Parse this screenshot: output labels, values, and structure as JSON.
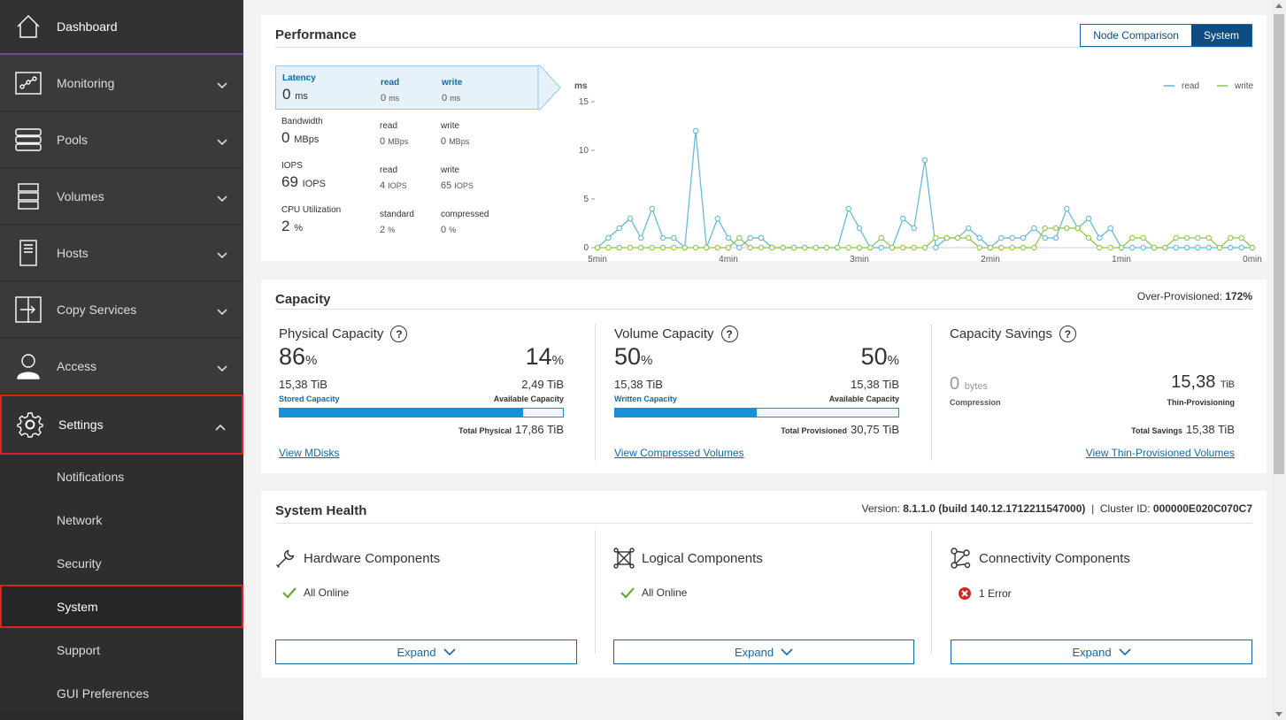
{
  "sidebar": {
    "dashboard": {
      "label": "Dashboard",
      "icon": "home-icon"
    },
    "items": [
      {
        "label": "Monitoring",
        "icon": "monitoring-icon"
      },
      {
        "label": "Pools",
        "icon": "pools-icon"
      },
      {
        "label": "Volumes",
        "icon": "volumes-icon"
      },
      {
        "label": "Hosts",
        "icon": "hosts-icon"
      },
      {
        "label": "Copy Services",
        "icon": "copy-services-icon"
      },
      {
        "label": "Access",
        "icon": "access-icon"
      }
    ],
    "settings": {
      "label": "Settings",
      "icon": "gear-icon",
      "expanded": true
    },
    "sub_items": [
      {
        "label": "Notifications"
      },
      {
        "label": "Network"
      },
      {
        "label": "Security"
      },
      {
        "label": "System",
        "active": true
      },
      {
        "label": "Support"
      },
      {
        "label": "GUI Preferences"
      }
    ]
  },
  "performance": {
    "title": "Performance",
    "toggle": {
      "node": "Node Comparison",
      "system": "System",
      "selected": "System"
    },
    "metrics": [
      {
        "name": "Latency",
        "value": "0",
        "unit": "ms",
        "c1_label": "read",
        "c1_value": "0",
        "c1_unit": "ms",
        "c2_label": "write",
        "c2_value": "0",
        "c2_unit": "ms",
        "selected": true
      },
      {
        "name": "Bandwidth",
        "value": "0",
        "unit": "MBps",
        "c1_label": "read",
        "c1_value": "0",
        "c1_unit": "MBps",
        "c2_label": "write",
        "c2_value": "0",
        "c2_unit": "MBps"
      },
      {
        "name": "IOPS",
        "value": "69",
        "unit": "IOPS",
        "c1_label": "read",
        "c1_value": "4",
        "c1_unit": "IOPS",
        "c2_label": "write",
        "c2_value": "65",
        "c2_unit": "IOPS"
      },
      {
        "name": "CPU Utilization",
        "value": "2",
        "unit": "%",
        "c1_label": "standard",
        "c1_value": "2",
        "c1_unit": "%",
        "c2_label": "compressed",
        "c2_value": "0",
        "c2_unit": "%"
      }
    ]
  },
  "chart_data": {
    "type": "line",
    "ylabel": "ms",
    "ylim": [
      0,
      15
    ],
    "yticks": [
      0,
      5,
      10,
      15
    ],
    "xlim": [
      300,
      0
    ],
    "xticks": [
      {
        "x": 300,
        "label": "5min"
      },
      {
        "x": 240,
        "label": "4min"
      },
      {
        "x": 180,
        "label": "3min"
      },
      {
        "x": 120,
        "label": "2min"
      },
      {
        "x": 60,
        "label": "1min"
      },
      {
        "x": 0,
        "label": "0min"
      }
    ],
    "legend": "top-right",
    "series": [
      {
        "name": "read",
        "color": "#5ab8d8",
        "points": [
          [
            300,
            0
          ],
          [
            295,
            1
          ],
          [
            290,
            2
          ],
          [
            285,
            3
          ],
          [
            280,
            1
          ],
          [
            275,
            4
          ],
          [
            270,
            1
          ],
          [
            265,
            1
          ],
          [
            260,
            0
          ],
          [
            255,
            12
          ],
          [
            250,
            0
          ],
          [
            245,
            3
          ],
          [
            240,
            1
          ],
          [
            235,
            0
          ],
          [
            230,
            1
          ],
          [
            225,
            1
          ],
          [
            220,
            0
          ],
          [
            215,
            0
          ],
          [
            210,
            0
          ],
          [
            205,
            0
          ],
          [
            200,
            0
          ],
          [
            195,
            0
          ],
          [
            190,
            0
          ],
          [
            185,
            4
          ],
          [
            180,
            2
          ],
          [
            175,
            0
          ],
          [
            170,
            0
          ],
          [
            165,
            0
          ],
          [
            160,
            3
          ],
          [
            155,
            2
          ],
          [
            150,
            9
          ],
          [
            145,
            0
          ],
          [
            140,
            1
          ],
          [
            135,
            1
          ],
          [
            130,
            2
          ],
          [
            125,
            1
          ],
          [
            120,
            0
          ],
          [
            115,
            1
          ],
          [
            110,
            1
          ],
          [
            105,
            1
          ],
          [
            100,
            2
          ],
          [
            95,
            1
          ],
          [
            90,
            1
          ],
          [
            85,
            4
          ],
          [
            80,
            2
          ],
          [
            75,
            3
          ],
          [
            70,
            1
          ],
          [
            65,
            2
          ],
          [
            60,
            0
          ],
          [
            55,
            0
          ],
          [
            50,
            0
          ],
          [
            45,
            0
          ],
          [
            40,
            0
          ],
          [
            35,
            0
          ],
          [
            30,
            0
          ],
          [
            25,
            0
          ],
          [
            20,
            0
          ],
          [
            15,
            0
          ],
          [
            10,
            0
          ],
          [
            5,
            0
          ],
          [
            0,
            0
          ]
        ]
      },
      {
        "name": "write",
        "color": "#8cc63e",
        "points": [
          [
            300,
            0
          ],
          [
            295,
            0
          ],
          [
            290,
            0
          ],
          [
            285,
            0
          ],
          [
            280,
            0
          ],
          [
            275,
            0
          ],
          [
            270,
            0
          ],
          [
            265,
            0
          ],
          [
            260,
            0
          ],
          [
            255,
            0
          ],
          [
            250,
            0
          ],
          [
            245,
            0
          ],
          [
            240,
            0
          ],
          [
            235,
            1
          ],
          [
            230,
            0
          ],
          [
            225,
            0
          ],
          [
            220,
            0
          ],
          [
            215,
            0
          ],
          [
            210,
            0
          ],
          [
            205,
            0
          ],
          [
            200,
            0
          ],
          [
            195,
            0
          ],
          [
            190,
            0
          ],
          [
            185,
            0
          ],
          [
            180,
            0
          ],
          [
            175,
            0
          ],
          [
            170,
            1
          ],
          [
            165,
            0
          ],
          [
            160,
            0
          ],
          [
            155,
            0
          ],
          [
            150,
            0
          ],
          [
            145,
            1
          ],
          [
            140,
            1
          ],
          [
            135,
            1
          ],
          [
            130,
            1
          ],
          [
            125,
            0
          ],
          [
            120,
            0
          ],
          [
            115,
            0
          ],
          [
            110,
            0
          ],
          [
            105,
            0
          ],
          [
            100,
            0
          ],
          [
            95,
            2
          ],
          [
            90,
            2
          ],
          [
            85,
            2
          ],
          [
            80,
            2
          ],
          [
            75,
            1
          ],
          [
            70,
            0
          ],
          [
            65,
            0
          ],
          [
            60,
            0
          ],
          [
            55,
            1
          ],
          [
            50,
            1
          ],
          [
            45,
            0
          ],
          [
            40,
            0
          ],
          [
            35,
            1
          ],
          [
            30,
            1
          ],
          [
            25,
            1
          ],
          [
            20,
            1
          ],
          [
            15,
            0
          ],
          [
            10,
            1
          ],
          [
            5,
            1
          ],
          [
            0,
            0
          ]
        ]
      }
    ]
  },
  "capacity": {
    "title": "Capacity",
    "over_prov_label": "Over-Provisioned:",
    "over_prov_value": "172%",
    "physical": {
      "title": "Physical Capacity",
      "pct_left": "86",
      "pct_right": "14",
      "tib_left": "15,38",
      "tib_right": "2,49",
      "unit": "TiB",
      "label_left": "Stored Capacity",
      "label_right": "Available Capacity",
      "fill_percent": 86,
      "total_label": "Total Physical",
      "total_value": "17,86",
      "link": "View MDisks"
    },
    "volume": {
      "title": "Volume Capacity",
      "pct_left": "50",
      "pct_right": "50",
      "tib_left": "15,38",
      "tib_right": "15,38",
      "unit": "TiB",
      "label_left": "Written Capacity",
      "label_right": "Available Capacity",
      "fill_percent": 50,
      "total_label": "Total Provisioned",
      "total_value": "30,75",
      "link": "View Compressed Volumes"
    },
    "savings": {
      "title": "Capacity Savings",
      "left_value": "0",
      "left_unit": "bytes",
      "left_label": "Compression",
      "right_value": "15,38",
      "right_unit": "TiB",
      "right_label": "Thin-Provisioning",
      "total_label": "Total Savings",
      "total_value": "15,38",
      "total_unit": "TiB",
      "link": "View Thin-Provisioned Volumes"
    },
    "percent_sign": "%"
  },
  "health": {
    "title": "System Health",
    "version_label": "Version:",
    "version_value": "8.1.1.0 (build 140.12.1712211547000)",
    "separator": "|",
    "cluster_label": "Cluster ID:",
    "cluster_value": "000000E020C070C7",
    "components": [
      {
        "title": "Hardware Components",
        "icon": "wrench-icon",
        "status": "All Online",
        "status_type": "ok",
        "expand": "Expand"
      },
      {
        "title": "Logical Components",
        "icon": "logical-icon",
        "status": "All Online",
        "status_type": "ok",
        "expand": "Expand"
      },
      {
        "title": "Connectivity Components",
        "icon": "connectivity-icon",
        "status": "1 Error",
        "status_type": "error",
        "expand": "Expand"
      }
    ]
  },
  "colors": {
    "accent": "#0f6ba8",
    "bar": "#1591d9",
    "read": "#5ab8d8",
    "write": "#8cc63e",
    "error": "#d6261e",
    "ok": "#6ba539"
  }
}
